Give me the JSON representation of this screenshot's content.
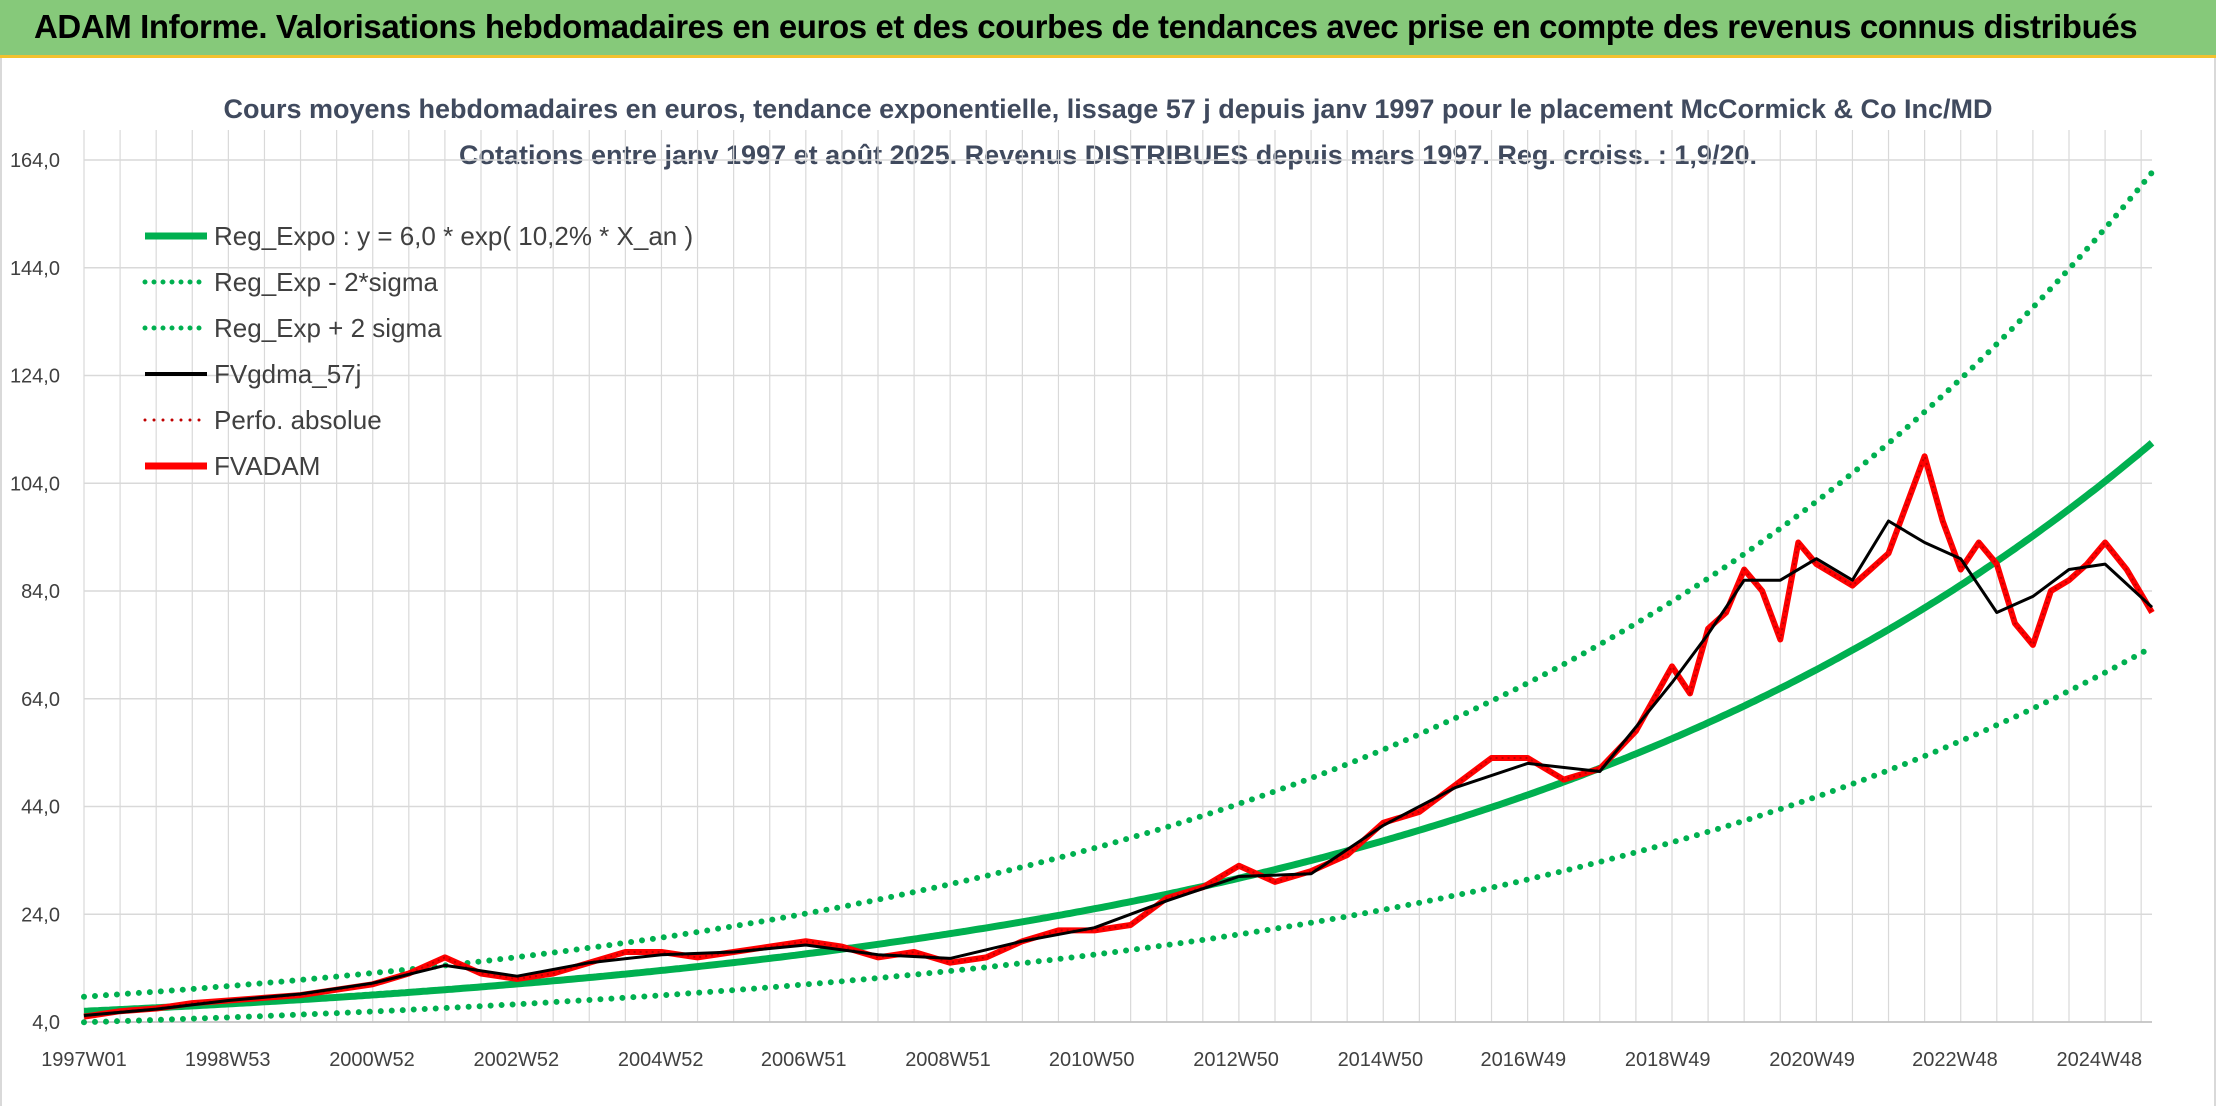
{
  "banner": {
    "title": "ADAM Informe. Valorisations hebdomadaires en euros et des courbes de tendances avec prise en compte des revenus connus distribués"
  },
  "colors": {
    "banner_bg": "#86c97a",
    "reg_green": "#00b050",
    "fvgdma_black": "#000000",
    "fvadam_red": "#ff0000",
    "perfo_red": "#c00000",
    "grid": "#d9d9d9"
  },
  "chart_data": {
    "type": "line",
    "title": "Cours moyens hebdomadaires en euros, tendance exponentielle, lissage 57 j depuis janv 1997 pour le placement McCormick & Co Inc/MD",
    "subtitle": "Cotations entre janv 1997 et août 2025. Revenus DISTRIBUES depuis mars 1997. Reg. croiss. : 1,9/20.",
    "xlabel": "",
    "ylabel": "",
    "x_range_years": [
      1997.0,
      2025.65
    ],
    "ylim": [
      4.0,
      164.0
    ],
    "y_ticks": [
      "4,0",
      "24,0",
      "44,0",
      "64,0",
      "84,0",
      "104,0",
      "124,0",
      "144,0",
      "164,0"
    ],
    "x_ticks": [
      {
        "label": "1997W01",
        "year": 1997.0
      },
      {
        "label": "1998W53",
        "year": 1998.99
      },
      {
        "label": "2000W52",
        "year": 2000.99
      },
      {
        "label": "2002W52",
        "year": 2002.99
      },
      {
        "label": "2004W52",
        "year": 2004.99
      },
      {
        "label": "2006W51",
        "year": 2006.97
      },
      {
        "label": "2008W51",
        "year": 2008.97
      },
      {
        "label": "2010W50",
        "year": 2010.96
      },
      {
        "label": "2012W50",
        "year": 2012.96
      },
      {
        "label": "2014W50",
        "year": 2014.96
      },
      {
        "label": "2016W49",
        "year": 2016.94
      },
      {
        "label": "2018W49",
        "year": 2018.94
      },
      {
        "label": "2020W49",
        "year": 2020.94
      },
      {
        "label": "2022W48",
        "year": 2022.92
      },
      {
        "label": "2024W48",
        "year": 2024.92
      }
    ],
    "grid": true,
    "legend_position": "top-left",
    "legend": [
      {
        "name": "Reg_Expo : y = 6,0 * exp( 10,2% *  X_an )",
        "style": "solid",
        "color": "#00b050"
      },
      {
        "name": "Reg_Exp - 2*sigma",
        "style": "dotted",
        "color": "#00b050"
      },
      {
        "name": "Reg_Exp + 2 sigma",
        "style": "dotted",
        "color": "#00b050"
      },
      {
        "name": "FVgdma_57j",
        "style": "solid",
        "color": "#000000"
      },
      {
        "name": "Perfo. absolue",
        "style": "dotted",
        "color": "#c00000"
      },
      {
        "name": "FVADAM",
        "style": "solid",
        "color": "#ff0000"
      }
    ],
    "regression": {
      "a": 6.0,
      "rate": 0.102,
      "lower_factor": 0.66,
      "upper_factor": 1.45
    },
    "series": [
      {
        "name": "FVADAM",
        "x": [
          1997.0,
          1997.5,
          1998.0,
          1998.5,
          1999.0,
          1999.5,
          2000.0,
          2000.5,
          2001.0,
          2001.5,
          2002.0,
          2002.5,
          2003.0,
          2003.5,
          2004.0,
          2004.5,
          2005.0,
          2005.5,
          2006.0,
          2006.5,
          2007.0,
          2007.5,
          2008.0,
          2008.5,
          2009.0,
          2009.5,
          2010.0,
          2010.5,
          2011.0,
          2011.5,
          2012.0,
          2012.5,
          2013.0,
          2013.5,
          2014.0,
          2014.5,
          2015.0,
          2015.5,
          2016.0,
          2016.5,
          2017.0,
          2017.5,
          2018.0,
          2018.5,
          2019.0,
          2019.25,
          2019.5,
          2019.75,
          2020.0,
          2020.25,
          2020.5,
          2020.75,
          2021.0,
          2021.25,
          2021.5,
          2021.75,
          2022.0,
          2022.25,
          2022.5,
          2022.75,
          2023.0,
          2023.25,
          2023.5,
          2023.75,
          2024.0,
          2024.25,
          2024.5,
          2024.75,
          2025.0,
          2025.3,
          2025.65
        ],
        "values": [
          5,
          6,
          6.5,
          7.5,
          8,
          8.5,
          9,
          10,
          11,
          13,
          16,
          13,
          12,
          13,
          15,
          17,
          17,
          16,
          17,
          18,
          19,
          18,
          16,
          17,
          15,
          16,
          19,
          21,
          21,
          22,
          27,
          29,
          33,
          30,
          32,
          35,
          41,
          43,
          48,
          53,
          53,
          49,
          51,
          58,
          70,
          65,
          77,
          80,
          88,
          84,
          75,
          93,
          89,
          87,
          85,
          88,
          91,
          100,
          109,
          97,
          88,
          93,
          89,
          78,
          74,
          84,
          86,
          89,
          93,
          88,
          80
        ]
      },
      {
        "name": "FVgdma_57j",
        "x": [
          1997.0,
          1998.0,
          1999.0,
          2000.0,
          2001.0,
          2002.0,
          2003.0,
          2004.0,
          2005.0,
          2006.0,
          2007.0,
          2008.0,
          2009.0,
          2010.0,
          2011.0,
          2012.0,
          2013.0,
          2014.0,
          2015.0,
          2016.0,
          2017.0,
          2018.0,
          2019.0,
          2019.5,
          2020.0,
          2020.5,
          2021.0,
          2021.5,
          2022.0,
          2022.5,
          2023.0,
          2023.5,
          2024.0,
          2024.5,
          2025.0,
          2025.65
        ],
        "values": [
          5.2,
          6.4,
          8,
          9.2,
          11.2,
          14.5,
          12.5,
          15,
          16.5,
          17,
          18.3,
          16.5,
          15.8,
          19,
          21.5,
          26.5,
          31,
          31.5,
          40.5,
          47.5,
          52,
          50.5,
          67,
          76,
          86,
          86,
          90,
          86,
          97,
          93,
          90,
          80,
          83,
          88,
          89,
          81
        ]
      }
    ]
  }
}
